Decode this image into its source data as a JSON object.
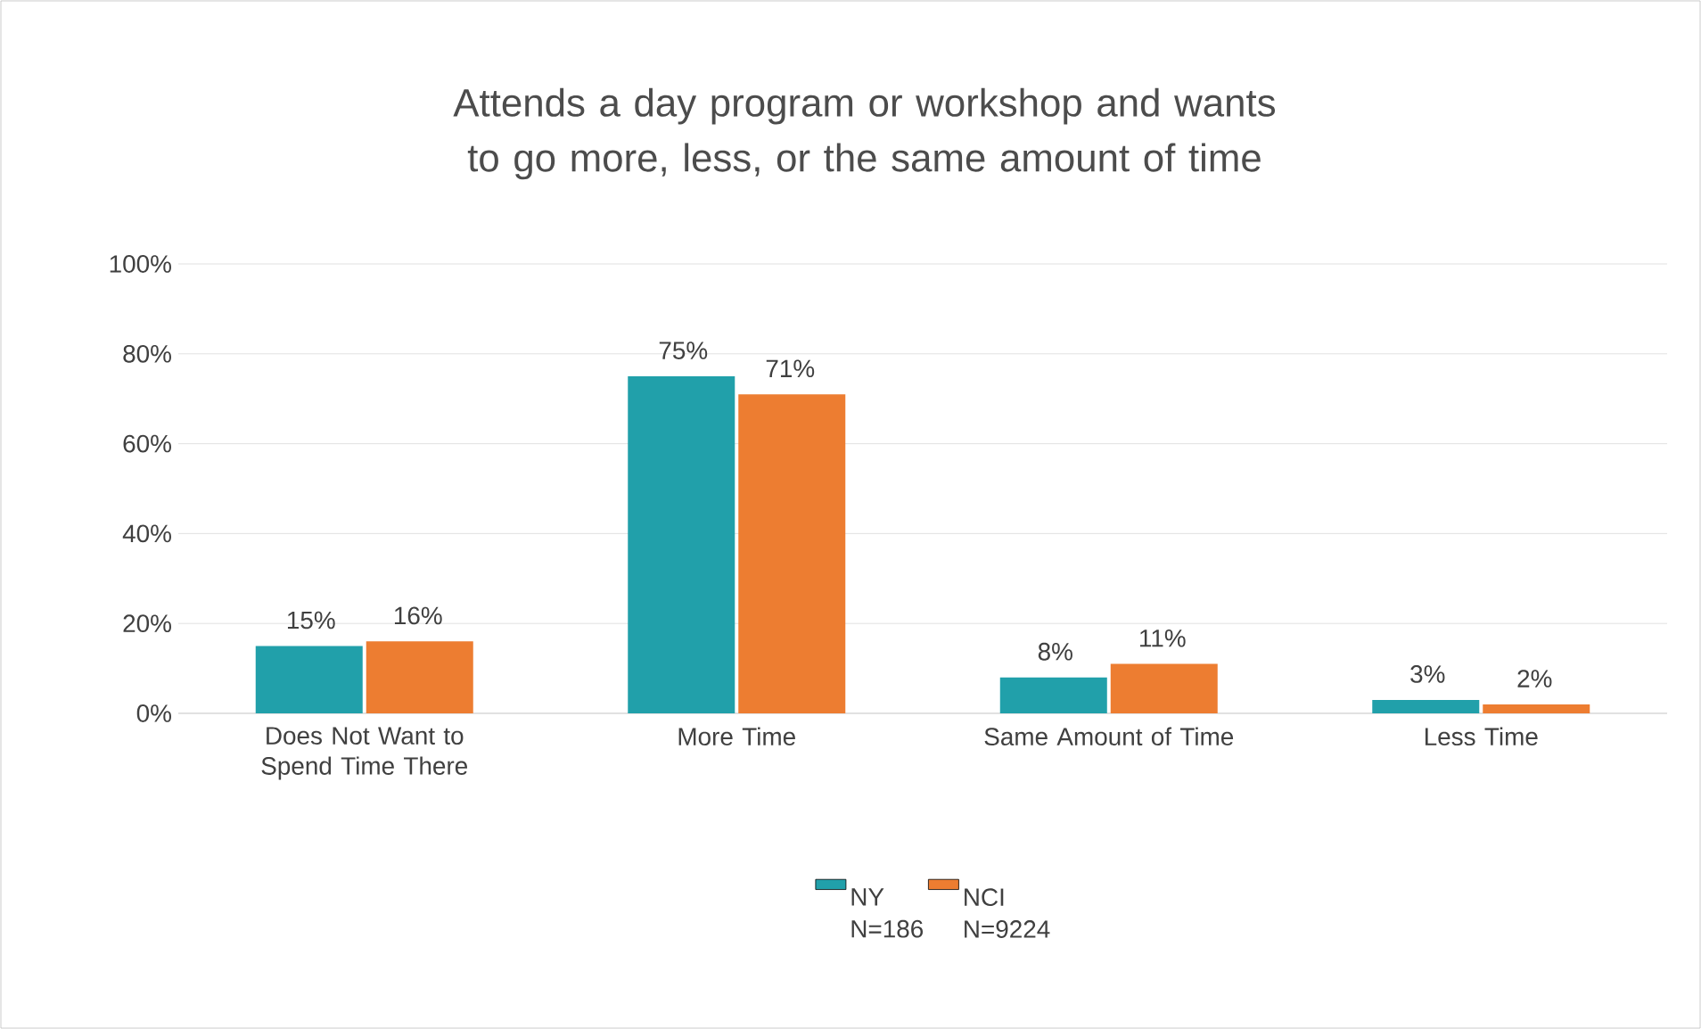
{
  "chart_data": {
    "type": "bar",
    "title": "Attends a day program or workshop and wants to go more, less, or the same amount of time",
    "categories": [
      "Does Not Want to Spend Time There",
      "More Time",
      "Same Amount of Time",
      "Less Time"
    ],
    "series": [
      {
        "name": "NY N=186",
        "color": "#21a0aa",
        "values": [
          15,
          75,
          8,
          3
        ],
        "value_labels": [
          "15%",
          "75%",
          "8%",
          "3%"
        ]
      },
      {
        "name": "NCI N=9224",
        "color": "#ed7d31",
        "values": [
          16,
          71,
          11,
          2
        ],
        "value_labels": [
          "16%",
          "71%",
          "11%",
          "2%"
        ]
      }
    ],
    "ylim": [
      0,
      100
    ],
    "yticks": [
      {
        "value": 0,
        "label": "0%"
      },
      {
        "value": 20,
        "label": "20%"
      },
      {
        "value": 40,
        "label": "40%"
      },
      {
        "value": 60,
        "label": "60%"
      },
      {
        "value": 80,
        "label": "80%"
      },
      {
        "value": 100,
        "label": "100%"
      }
    ],
    "grid": "y",
    "legend": "bottom"
  }
}
